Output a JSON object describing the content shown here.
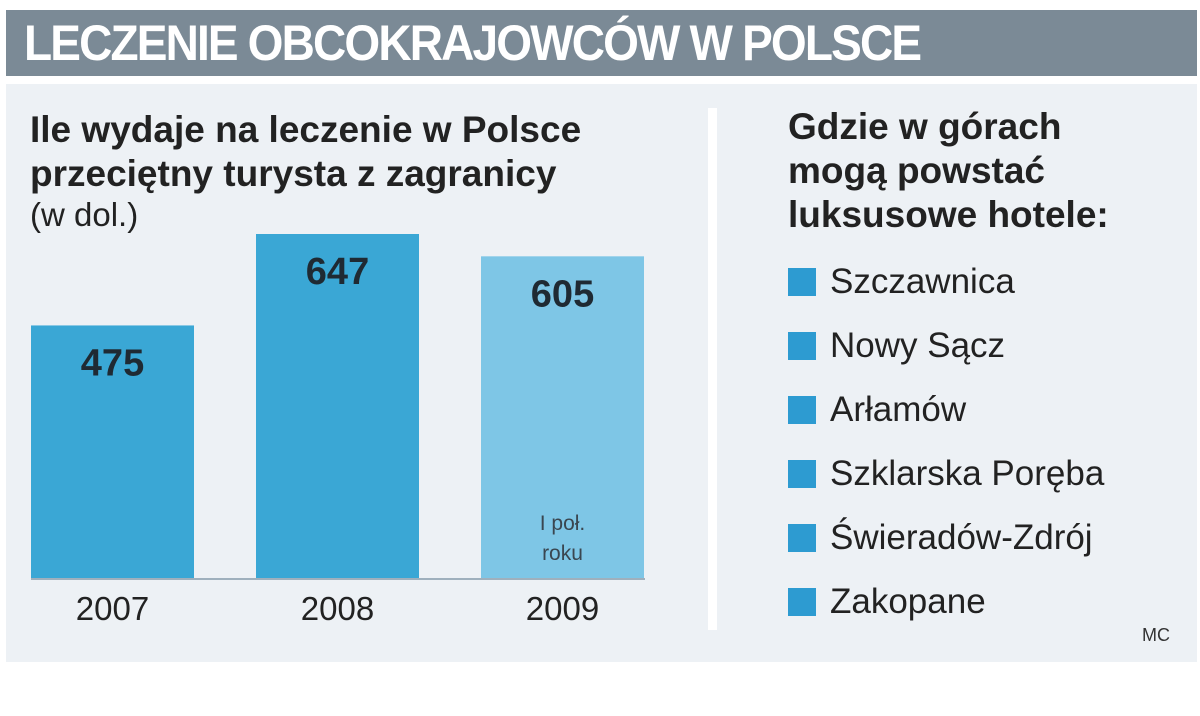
{
  "header": {
    "title": "LECZENIE OBCOKRAJOWCÓW W POLSCE"
  },
  "chart": {
    "title_line1": "Ile wydaje na leczenie w Polsce",
    "title_line2": "przeciętny turysta z zagranicy",
    "unit": "(w dol.)"
  },
  "chart_data": {
    "type": "bar",
    "title": "Ile wydaje na leczenie w Polsce przeciętny turysta z zagranicy",
    "subtitle": "(w dol.)",
    "categories": [
      "2007",
      "2008",
      "2009"
    ],
    "values": [
      475,
      647,
      605
    ],
    "value_labels": [
      "475",
      "647",
      "605"
    ],
    "annotations": [
      {
        "category": "2009",
        "text_lines": [
          "I poł.",
          "roku"
        ]
      }
    ],
    "colors": [
      "#3aa7d5",
      "#3aa7d5",
      "#7ec6e6"
    ],
    "xlabel": "",
    "ylabel": "",
    "ylim": [
      0,
      647
    ],
    "grid": false
  },
  "legend": {
    "title_line1": "Gdzie w górach",
    "title_line2": "mogą powstać",
    "title_line3": "luksusowe hotele:",
    "swatch_color": "#2d9bd1",
    "items": [
      "Szczawnica",
      "Nowy Sącz",
      "Arłamów",
      "Szklarska Poręba",
      "Świeradów-Zdrój",
      "Zakopane"
    ]
  },
  "credit": "MC",
  "colors": {
    "banner": "#7b8a96",
    "panel": "#edf1f5",
    "bar": "#3aa7d5",
    "bar_partial": "#7ec6e6"
  }
}
